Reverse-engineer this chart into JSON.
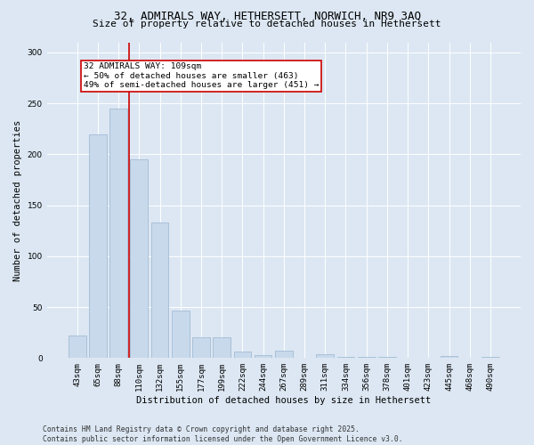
{
  "title_line1": "32, ADMIRALS WAY, HETHERSETT, NORWICH, NR9 3AQ",
  "title_line2": "Size of property relative to detached houses in Hethersett",
  "xlabel": "Distribution of detached houses by size in Hethersett",
  "ylabel": "Number of detached properties",
  "categories": [
    "43sqm",
    "65sqm",
    "88sqm",
    "110sqm",
    "132sqm",
    "155sqm",
    "177sqm",
    "199sqm",
    "222sqm",
    "244sqm",
    "267sqm",
    "289sqm",
    "311sqm",
    "334sqm",
    "356sqm",
    "378sqm",
    "401sqm",
    "423sqm",
    "445sqm",
    "468sqm",
    "490sqm"
  ],
  "values": [
    22,
    220,
    245,
    195,
    133,
    47,
    20,
    20,
    6,
    3,
    7,
    0,
    4,
    1,
    1,
    1,
    0,
    0,
    2,
    0,
    1
  ],
  "bar_color": "#c8d9ec",
  "bar_edge_color": "#9ab4ce",
  "vline_color": "#cc0000",
  "vline_x_index": 2.5,
  "annotation_text": "32 ADMIRALS WAY: 109sqm\n← 50% of detached houses are smaller (463)\n49% of semi-detached houses are larger (451) →",
  "annotation_box_facecolor": "#ffffff",
  "annotation_box_edgecolor": "#cc0000",
  "ylim": [
    0,
    310
  ],
  "yticks": [
    0,
    50,
    100,
    150,
    200,
    250,
    300
  ],
  "background_color": "#dce7f3",
  "plot_bg_color": "#dce7f3",
  "grid_color": "#ffffff",
  "footer_line1": "Contains HM Land Registry data © Crown copyright and database right 2025.",
  "footer_line2": "Contains public sector information licensed under the Open Government Licence v3.0.",
  "title_fontsize": 9,
  "subtitle_fontsize": 8,
  "tick_fontsize": 6.5,
  "ylabel_fontsize": 7.5,
  "xlabel_fontsize": 7.5,
  "annotation_fontsize": 6.8,
  "footer_fontsize": 5.8
}
